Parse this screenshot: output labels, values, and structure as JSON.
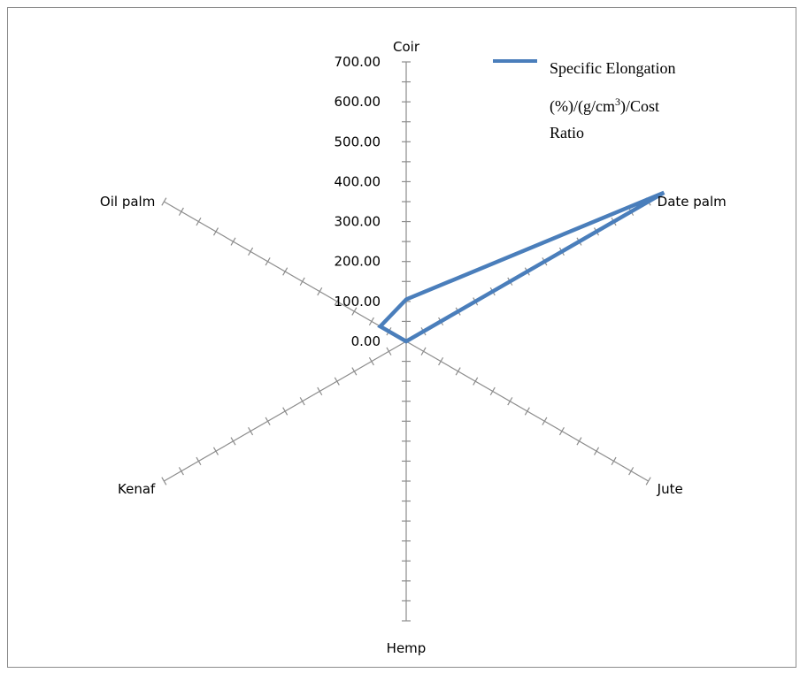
{
  "chart_data": {
    "type": "radar",
    "categories": [
      "Coir",
      "Date palm",
      "Jute",
      "Hemp",
      "Kenaf",
      "Oil palm"
    ],
    "series": [
      {
        "name": "Specific Elongation (%)/(g/cm3)/Cost Ratio",
        "values": [
          105,
          745,
          0,
          0,
          0,
          75
        ],
        "color": "#4a7ebb"
      }
    ],
    "tick_labels": [
      "0.00",
      "100.00",
      "200.00",
      "300.00",
      "400.00",
      "500.00",
      "600.00",
      "700.00"
    ],
    "rlim": [
      0,
      700
    ],
    "legend": {
      "line1": "Specific Elongation",
      "line2_pre": "(%)/(g/cm",
      "line2_sup": "3",
      "line2_post": ")/Cost",
      "line3": "Ratio",
      "placement": "top-right"
    },
    "axis_color": "#8c8c8c"
  }
}
